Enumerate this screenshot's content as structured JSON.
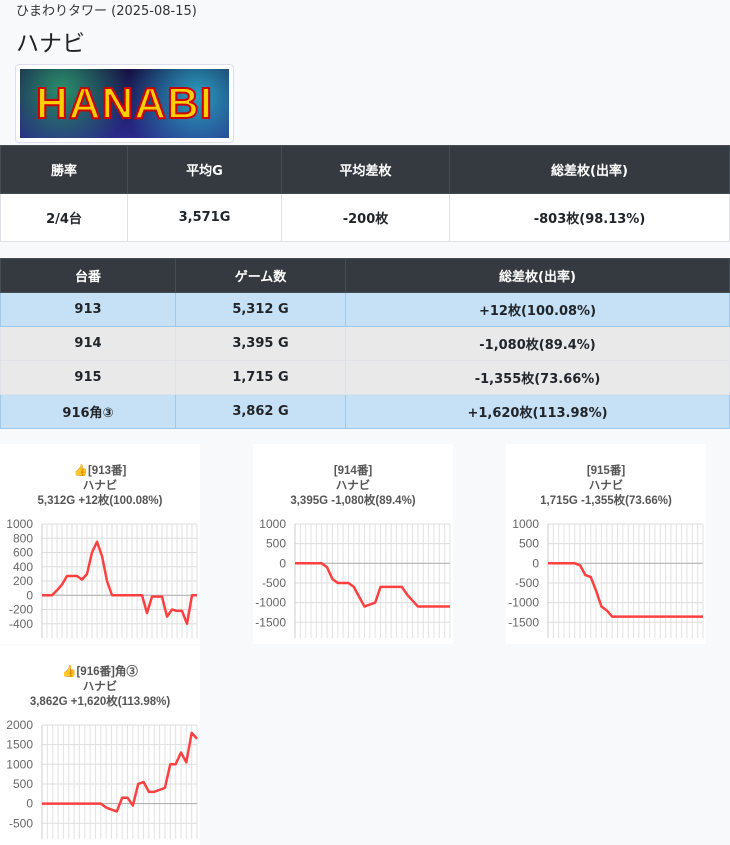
{
  "header": {
    "subtitle": "ひまわりタワー (2025-08-15)",
    "title": "ハナビ",
    "logo_text": "HANABI"
  },
  "summary": {
    "headers": [
      "勝率",
      "平均G",
      "平均差枚",
      "総差枚(出率)"
    ],
    "values": [
      "2/4台",
      "3,571G",
      "-200枚",
      "-803枚(98.13%)"
    ]
  },
  "machines": {
    "headers": [
      "台番",
      "ゲーム数",
      "総差枚(出率)"
    ],
    "rows": [
      {
        "id": "913",
        "games": "5,312 G",
        "diff": "+12枚(100.08%)",
        "highlight": "blue"
      },
      {
        "id": "914",
        "games": "3,395 G",
        "diff": "-1,080枚(89.4%)",
        "highlight": "grey"
      },
      {
        "id": "915",
        "games": "1,715 G",
        "diff": "-1,355枚(73.66%)",
        "highlight": "grey"
      },
      {
        "id": "916角③",
        "games": "3,862 G",
        "diff": "+1,620枚(113.98%)",
        "highlight": "blue"
      }
    ]
  },
  "charts": [
    {
      "label": "👍[913番]",
      "name": "ハナビ",
      "stats": "5,312G +12枚(100.08%)",
      "ticks": [
        1000,
        800,
        600,
        400,
        200,
        0,
        -200,
        -400
      ],
      "ylim": [
        -600,
        1000
      ],
      "values": [
        0,
        0,
        0,
        70,
        150,
        270,
        270,
        270,
        220,
        300,
        600,
        750,
        550,
        200,
        0,
        0,
        0,
        0,
        0,
        0,
        0,
        -250,
        -20,
        -20,
        -20,
        -300,
        -200,
        -220,
        -220,
        -400,
        0,
        0
      ]
    },
    {
      "label": "[914番]",
      "name": "ハナビ",
      "stats": "3,395G -1,080枚(89.4%)",
      "ticks": [
        1000,
        500,
        0,
        -500,
        -1000,
        -1500
      ],
      "ylim": [
        -1900,
        1000
      ],
      "values": [
        0,
        0,
        0,
        0,
        0,
        0,
        -100,
        -400,
        -500,
        -500,
        -500,
        -600,
        -850,
        -1100,
        -1050,
        -1000,
        -600,
        -600,
        -600,
        -600,
        -600,
        -800,
        -950,
        -1100,
        -1100,
        -1100,
        -1100,
        -1100,
        -1100,
        -1100
      ]
    },
    {
      "label": "[915番]",
      "name": "ハナビ",
      "stats": "1,715G -1,355枚(73.66%)",
      "ticks": [
        1000,
        500,
        0,
        -500,
        -1000,
        -1500
      ],
      "ylim": [
        -1900,
        1000
      ],
      "values": [
        0,
        0,
        0,
        0,
        0,
        0,
        -50,
        -300,
        -350,
        -700,
        -1100,
        -1200,
        -1355,
        -1355,
        -1355,
        -1355,
        -1355,
        -1355,
        -1355,
        -1355,
        -1355,
        -1355,
        -1355,
        -1355,
        -1355,
        -1355,
        -1355,
        -1355,
        -1355,
        -1355
      ]
    },
    {
      "label": "👍[916番]角③",
      "name": "ハナビ",
      "stats": "3,862G +1,620枚(113.98%)",
      "ticks": [
        2000,
        1500,
        1000,
        500,
        0,
        -500
      ],
      "ylim": [
        -900,
        2000
      ],
      "values": [
        0,
        0,
        0,
        0,
        0,
        0,
        0,
        0,
        0,
        0,
        0,
        0,
        -100,
        -150,
        -200,
        150,
        150,
        -50,
        500,
        550,
        300,
        300,
        350,
        400,
        1000,
        1000,
        1300,
        1050,
        1800,
        1650
      ]
    }
  ],
  "colors": {
    "line": "#ff4040",
    "header_bg": "#343a40",
    "row_blue": "#c6e0f5",
    "row_grey": "#e9e9e9"
  }
}
